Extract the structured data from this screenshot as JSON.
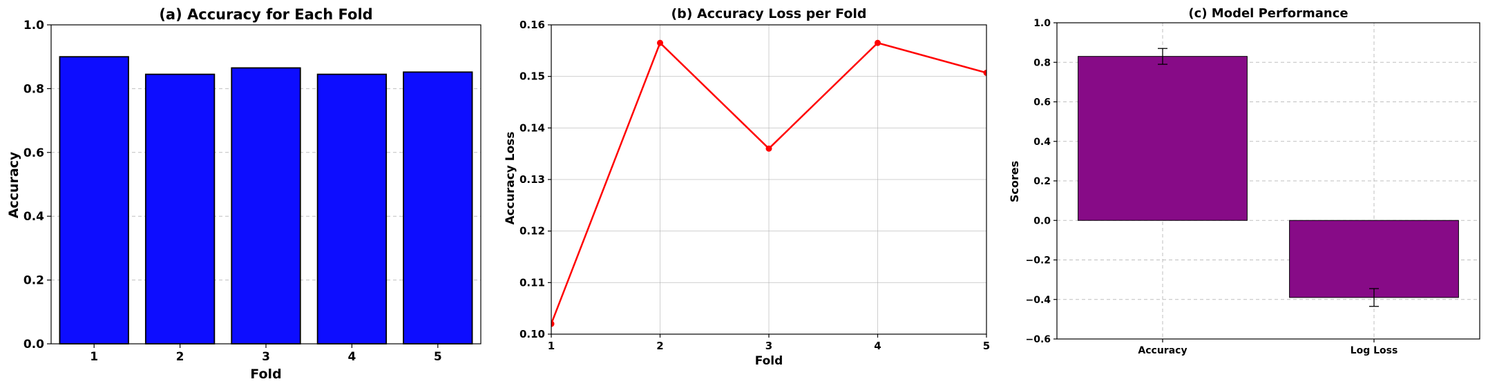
{
  "colors": {
    "bar_a": "#0d0dff",
    "line_b": "#ff0000",
    "bar_c": "#870b87",
    "grid": "#b0b0b0",
    "axis": "#000000"
  },
  "chart_data": [
    {
      "type": "bar",
      "title": "(a) Accuracy for Each Fold",
      "xlabel": "Fold",
      "ylabel": "Accuracy",
      "categories": [
        "1",
        "2",
        "3",
        "4",
        "5"
      ],
      "values": [
        0.9,
        0.845,
        0.865,
        0.845,
        0.852
      ],
      "ylim": [
        0.0,
        1.0
      ],
      "yticks": [
        "0.0",
        "0.2",
        "0.4",
        "0.6",
        "0.8",
        "1.0"
      ],
      "grid": "y-dashed"
    },
    {
      "type": "line",
      "title": "(b) Accuracy Loss per Fold",
      "xlabel": "Fold",
      "ylabel": "Accuracy Loss",
      "x": [
        1,
        2,
        3,
        4,
        5
      ],
      "values": [
        0.102,
        0.1565,
        0.136,
        0.1565,
        0.1507
      ],
      "xlim": [
        1,
        5
      ],
      "ylim": [
        0.1,
        0.16
      ],
      "xticks": [
        "1",
        "2",
        "3",
        "4",
        "5"
      ],
      "yticks": [
        "0.10",
        "0.11",
        "0.12",
        "0.13",
        "0.14",
        "0.15",
        "0.16"
      ],
      "grid": "both"
    },
    {
      "type": "bar",
      "title": "(c) Model Performance",
      "xlabel": "",
      "ylabel": "Scores",
      "categories": [
        "Accuracy",
        "Log Loss"
      ],
      "values": [
        0.83,
        -0.39
      ],
      "errors": [
        0.04,
        0.045
      ],
      "ylim": [
        -0.6,
        1.0
      ],
      "yticks": [
        "−0.6",
        "−0.4",
        "−0.2",
        "0.0",
        "0.2",
        "0.4",
        "0.6",
        "0.8",
        "1.0"
      ],
      "grid": "both-dashed"
    }
  ]
}
